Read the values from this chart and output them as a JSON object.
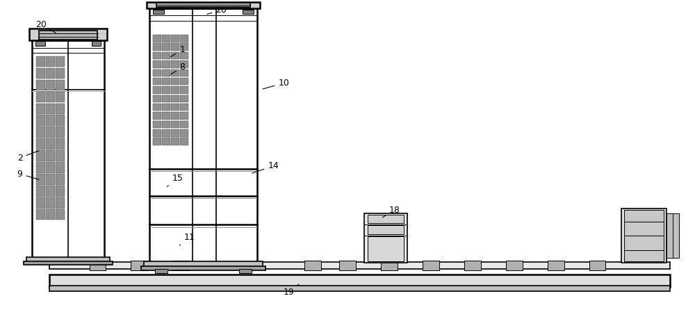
{
  "bg_color": "#ffffff",
  "line_color": "#000000",
  "gray_color": "#888888",
  "light_gray": "#cccccc",
  "dark_gray": "#444444",
  "fig_width": 10.0,
  "fig_height": 4.59
}
